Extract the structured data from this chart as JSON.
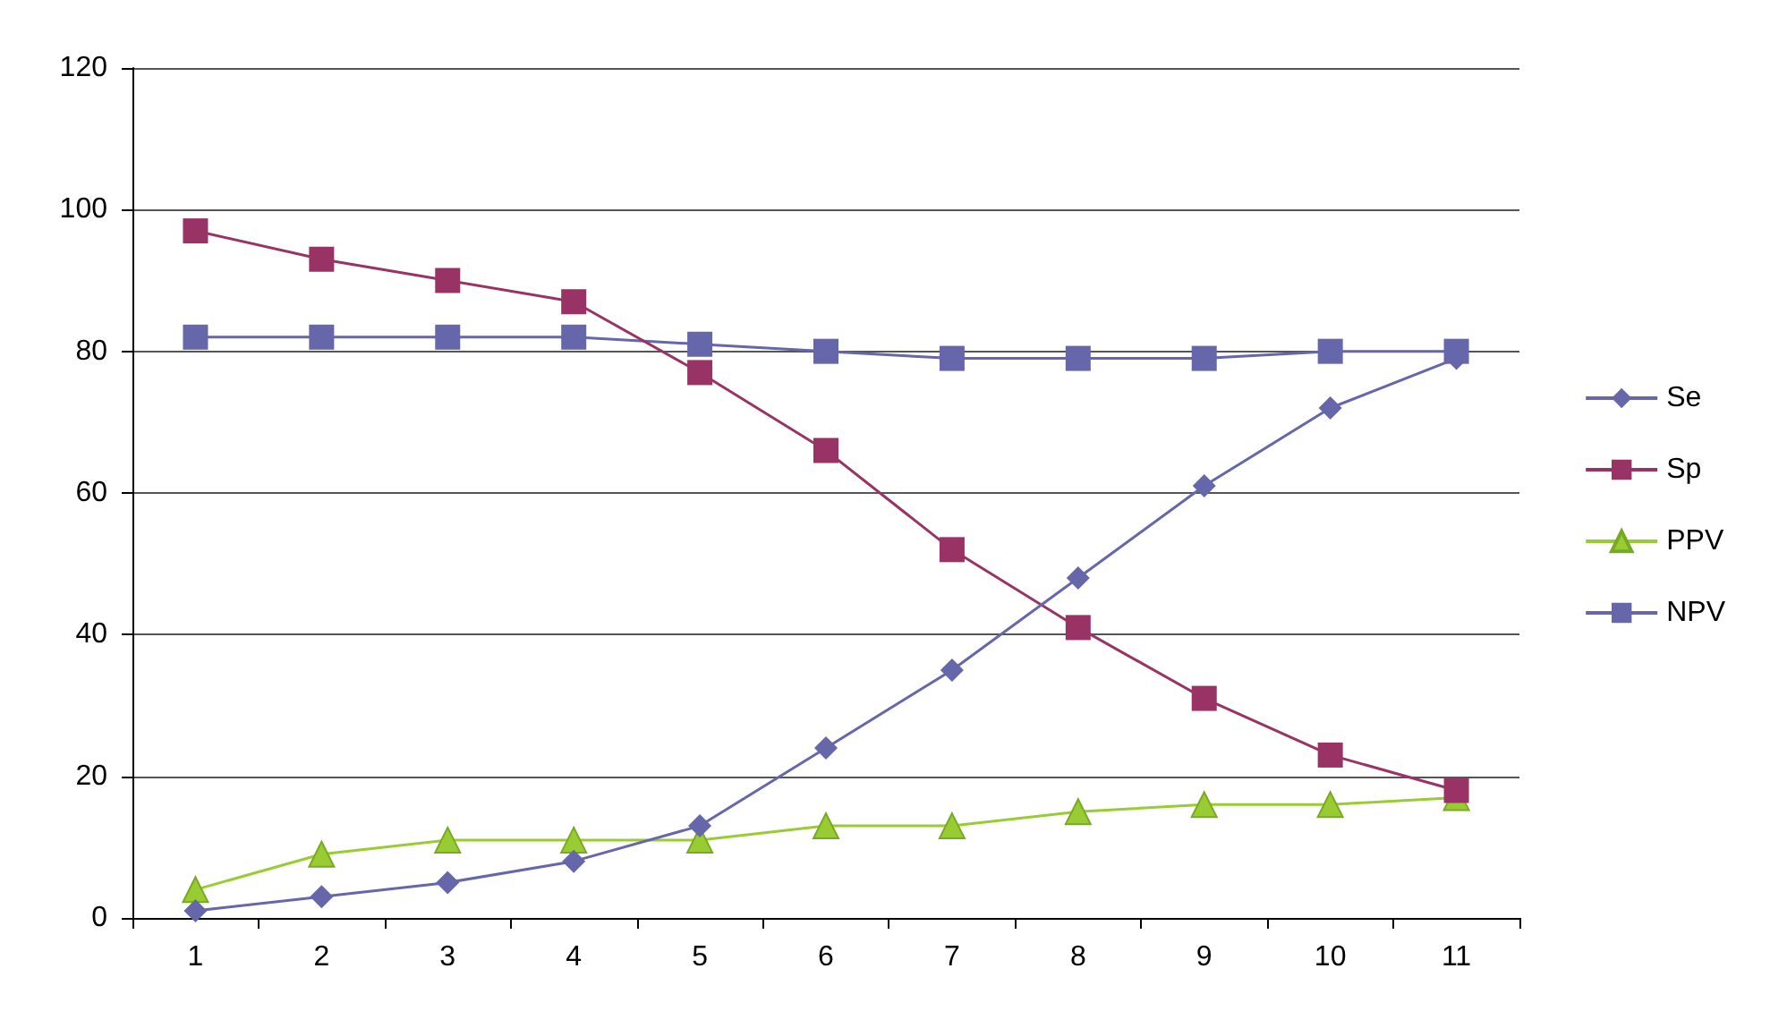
{
  "chart_data": {
    "type": "line",
    "categories": [
      "1",
      "2",
      "3",
      "4",
      "5",
      "6",
      "7",
      "8",
      "9",
      "10",
      "11"
    ],
    "series": [
      {
        "name": "Se",
        "color": "#6666aa",
        "marker": "diamond",
        "values": [
          1,
          3,
          5,
          8,
          13,
          24,
          35,
          48,
          61,
          72,
          79
        ]
      },
      {
        "name": "Sp",
        "color": "#993366",
        "marker": "square",
        "values": [
          97,
          93,
          90,
          87,
          77,
          66,
          52,
          41,
          31,
          23,
          18
        ]
      },
      {
        "name": "PPV",
        "color": "#99cc33",
        "marker": "triangle",
        "values": [
          4,
          9,
          11,
          11,
          11,
          13,
          13,
          15,
          16,
          16,
          17
        ]
      },
      {
        "name": "NPV",
        "color": "#6666aa",
        "marker": "square",
        "values": [
          82,
          82,
          82,
          82,
          81,
          80,
          79,
          79,
          79,
          80,
          80
        ]
      }
    ],
    "ylim": [
      0,
      120
    ],
    "yticks": [
      0,
      20,
      40,
      60,
      80,
      100,
      120
    ],
    "grid": "y",
    "legend": "right",
    "line_style": "solid"
  }
}
